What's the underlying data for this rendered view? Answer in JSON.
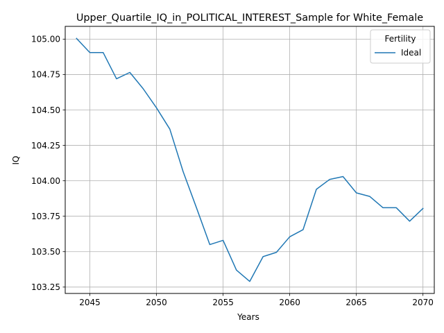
{
  "chart_data": {
    "type": "line",
    "title": "Upper_Quartile_IQ_in_POLITICAL_INTEREST_Sample for White_Female",
    "xlabel": "Years",
    "ylabel": "IQ",
    "xlim": [
      2043.15,
      2070.85
    ],
    "ylim": [
      103.205,
      105.09
    ],
    "xticks": [
      2045,
      2050,
      2055,
      2060,
      2065,
      2070
    ],
    "yticks": [
      103.25,
      103.5,
      103.75,
      104.0,
      104.25,
      104.5,
      104.75,
      105.0
    ],
    "ytick_labels": [
      "103.25",
      "103.50",
      "103.75",
      "104.00",
      "104.25",
      "104.50",
      "104.75",
      "105.00"
    ],
    "grid": true,
    "legend": {
      "title": "Fertility",
      "placement": "top-right"
    },
    "series": [
      {
        "name": "Ideal",
        "color": "#1f77b4",
        "x": [
          2044,
          2045,
          2046,
          2047,
          2048,
          2049,
          2050,
          2051,
          2052,
          2053,
          2054,
          2055,
          2056,
          2057,
          2058,
          2059,
          2060,
          2061,
          2062,
          2063,
          2064,
          2065,
          2066,
          2067,
          2068,
          2069,
          2070
        ],
        "y": [
          105.005,
          104.905,
          104.905,
          104.72,
          104.765,
          104.65,
          104.515,
          104.365,
          104.065,
          103.81,
          103.55,
          103.58,
          103.37,
          103.29,
          103.465,
          103.495,
          103.605,
          103.655,
          103.94,
          104.01,
          104.03,
          103.915,
          103.89,
          103.81,
          103.81,
          103.715,
          103.805
        ]
      }
    ]
  }
}
